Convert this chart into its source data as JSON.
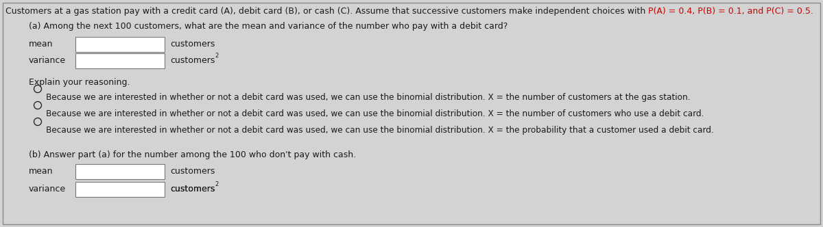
{
  "background_color": "#d3d3d3",
  "border_color": "#888888",
  "title_plain": "Customers at a gas station pay with a credit card (A), debit card (B), or cash (C). Assume that successive customers make independent choices with ",
  "title_colored": "P(A) = 0.4, P(B) = 0.1, and P(C) = 0.5.",
  "part_a_question": "(a) Among the next 100 customers, what are the mean and variance of the number who pay with a debit card?",
  "mean_label": "mean",
  "variance_label": "variance",
  "customers_label": "customers",
  "explain_label": "Explain your reasoning.",
  "option1": "Because we are interested in whether or not a debit card was used, we can use the binomial distribution. X = the number of customers at the gas station.",
  "option2": "Because we are interested in whether or not a debit card was used, we can use the binomial distribution. X = the number of customers who use a debit card.",
  "option3": "Because we are interested in whether or not a debit card was used, we can use the binomial distribution. X = the probability that a customer used a debit card.",
  "part_b_question": "(b) Answer part (a) for the number among the 100 who don't pay with cash.",
  "text_color": "#1a1a1a",
  "red_color": "#cc0000",
  "input_box_color": "#ffffff",
  "input_box_border": "#777777",
  "font_size_title": 9.0,
  "font_size_body": 9.0
}
